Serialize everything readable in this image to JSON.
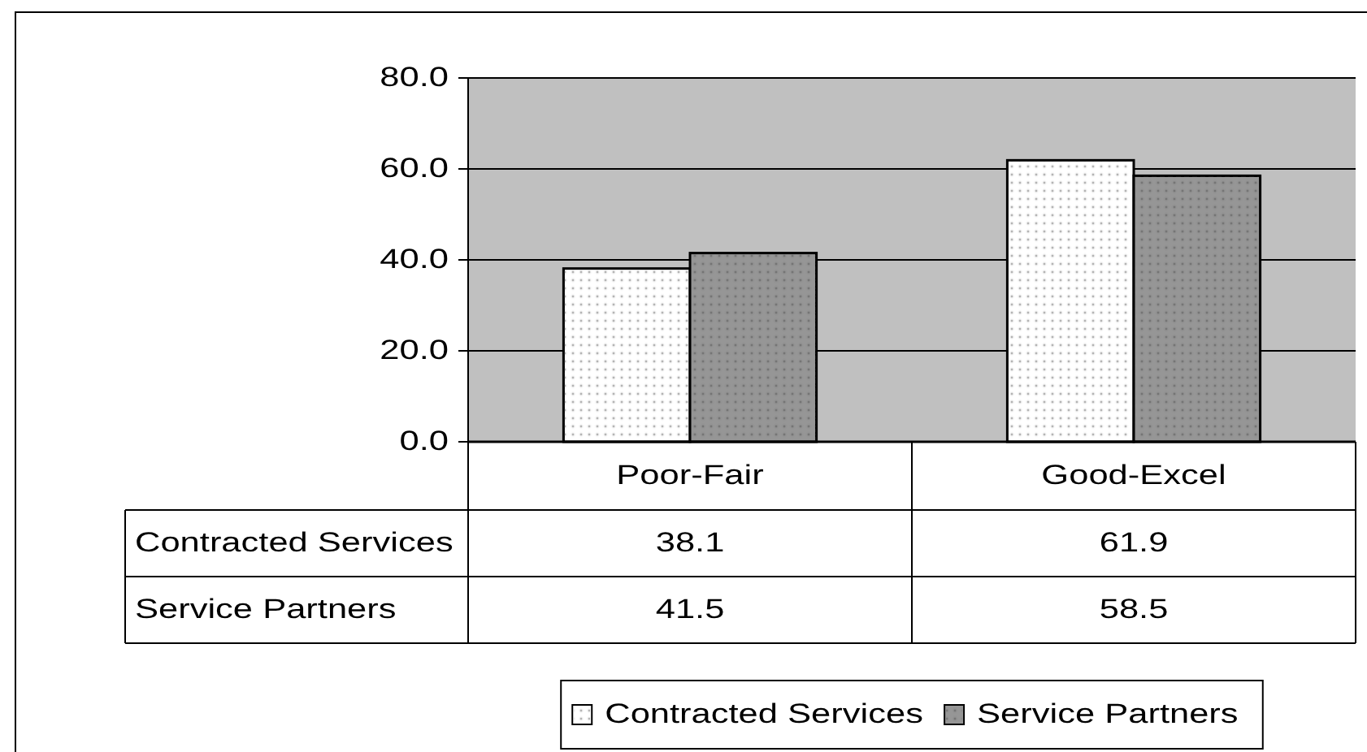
{
  "chart_data": {
    "type": "bar",
    "categories": [
      "Poor-Fair",
      "Good-Excel"
    ],
    "series": [
      {
        "name": "Contracted Services",
        "color": "#ffffff",
        "values": [
          38.1,
          61.9
        ]
      },
      {
        "name": "Service Partners",
        "color": "#969696",
        "values": [
          41.5,
          58.5
        ]
      }
    ],
    "ylim": [
      0,
      80
    ],
    "yticks": [
      {
        "value": 0,
        "label": "0.0"
      },
      {
        "value": 20,
        "label": "20.0"
      },
      {
        "value": 40,
        "label": "40.0"
      },
      {
        "value": 60,
        "label": "60.0"
      },
      {
        "value": 80,
        "label": "80.0"
      }
    ],
    "grid": "y",
    "legend": "bottom",
    "data_labels": true
  }
}
